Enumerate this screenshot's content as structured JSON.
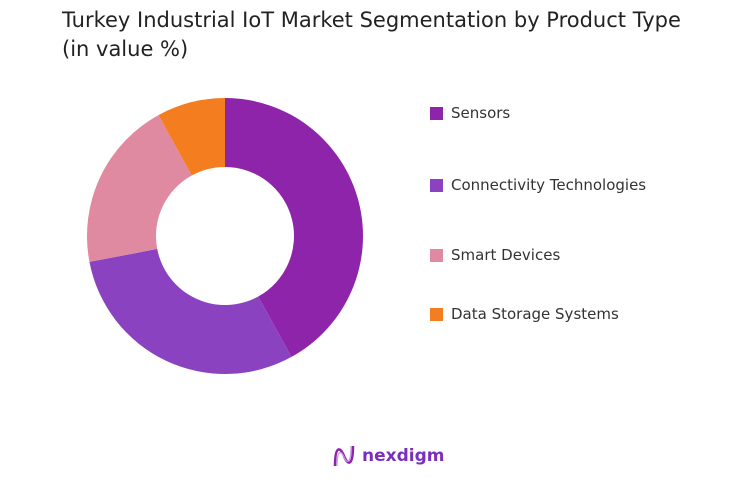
{
  "chart_data": {
    "type": "pie",
    "title": "Turkey Industrial IoT Market Segmentation by Product Type (in value %)",
    "donut": true,
    "categories": [
      "Sensors",
      "Connectivity Technologies",
      "Smart Devices",
      "Data Storage Systems"
    ],
    "values": [
      42,
      30,
      20,
      8
    ],
    "colors": [
      "#8E24AA",
      "#8A42C0",
      "#DF8AA0",
      "#F47D20"
    ],
    "legend_position": "right"
  },
  "branding": {
    "logo_text": "nexdigm"
  }
}
